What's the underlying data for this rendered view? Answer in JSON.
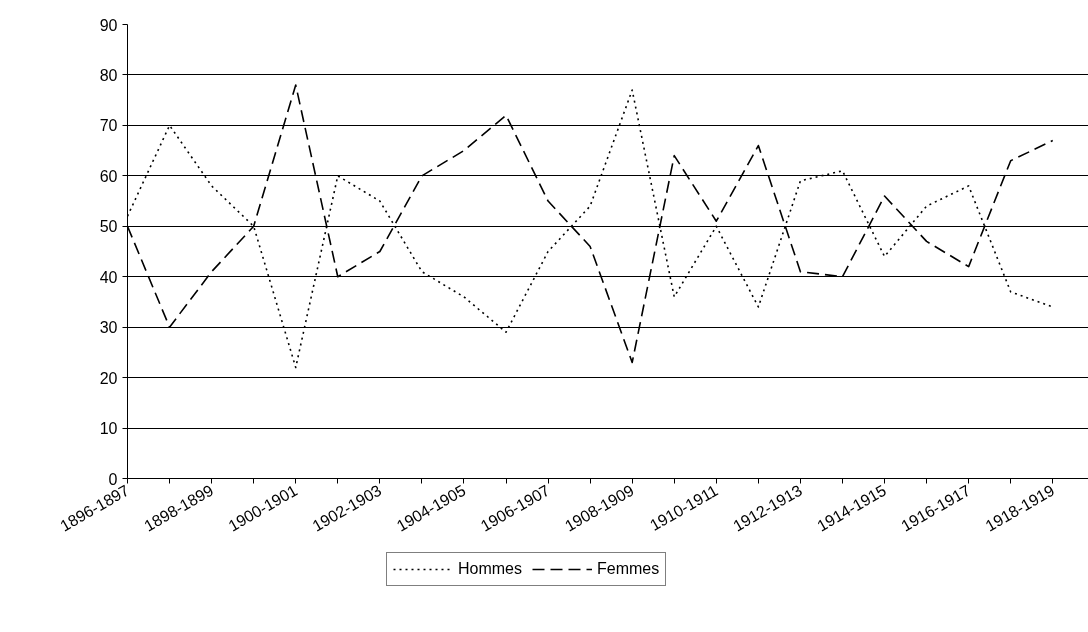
{
  "chart_data": {
    "type": "line",
    "categories": [
      "1896-1897",
      null,
      "1898-1899",
      null,
      "1900-1901",
      null,
      "1902-1903",
      null,
      "1904-1905",
      null,
      "1906-1907",
      null,
      "1908-1909",
      null,
      "1910-1911",
      null,
      "1912-1913",
      null,
      "1914-1915",
      null,
      "1916-1917",
      null,
      "1918-1919"
    ],
    "series": [
      {
        "name": "Hommes",
        "color": "#000000",
        "line_style": "dotted",
        "values": [
          52,
          70,
          58,
          50,
          22,
          60,
          55,
          41,
          36,
          29,
          45,
          54,
          77,
          36,
          50,
          34,
          59,
          61,
          44,
          54,
          58,
          37,
          34
        ]
      },
      {
        "name": "Femmes",
        "color": "#000000",
        "line_style": "dashed",
        "values": [
          50,
          30,
          41,
          50,
          78,
          40,
          45,
          60,
          65,
          72,
          55,
          46,
          23,
          64,
          51,
          66,
          41,
          40,
          56,
          47,
          42,
          63,
          67
        ]
      }
    ],
    "ylim": [
      0,
      90
    ],
    "yticks": [
      0,
      10,
      20,
      30,
      40,
      50,
      60,
      70,
      80,
      90
    ],
    "grid": "y",
    "legend": "bottom",
    "marker": "none"
  }
}
